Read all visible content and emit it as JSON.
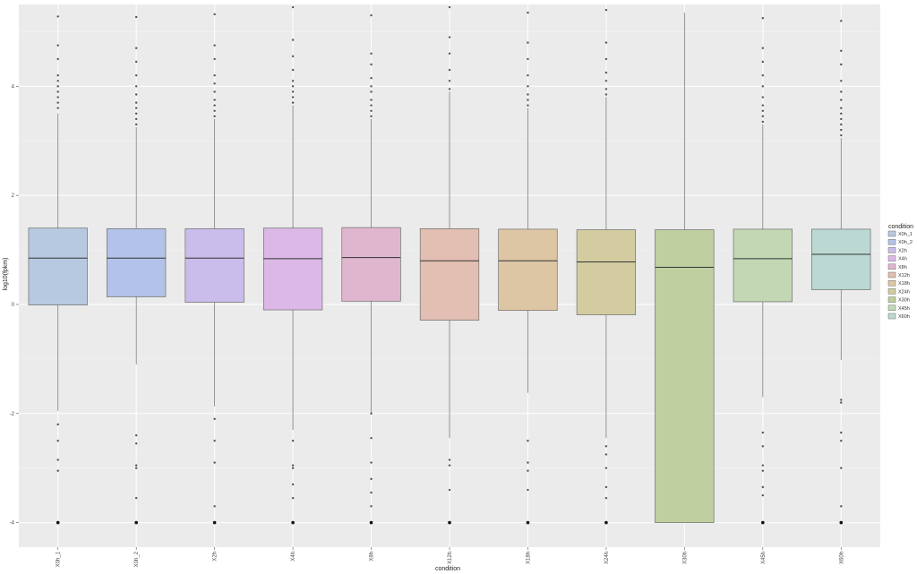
{
  "chart_data": {
    "type": "boxplot",
    "xlabel": "condition",
    "ylabel": "log10(fpkm)",
    "ylim": [
      -4.45,
      5.5
    ],
    "yticks": [
      -4,
      -2,
      0,
      2,
      4
    ],
    "grid": true,
    "legend_position": "right",
    "legend_title": "condition",
    "categories": [
      "X0h_1",
      "X0h_2",
      "X2h",
      "X4h",
      "X8h",
      "X12h",
      "X18h",
      "X24h",
      "X30h",
      "X45h",
      "X60h"
    ],
    "series": [
      {
        "name": "X0h_1",
        "color": "#b7c9e0",
        "q1": -0.01,
        "median": 0.85,
        "q3": 1.4,
        "whisker_low": -1.95,
        "whisker_high": 3.5,
        "outliers_high": [
          3.6,
          3.7,
          3.8,
          3.9,
          4.0,
          4.1,
          4.2,
          4.5,
          4.75,
          5.28
        ],
        "outliers_low": [
          -2.2,
          -2.5,
          -2.85,
          -3.05,
          -4.0
        ]
      },
      {
        "name": "X0h_2",
        "color": "#b2c2e8",
        "q1": 0.14,
        "median": 0.85,
        "q3": 1.39,
        "whisker_low": -1.1,
        "whisker_high": 3.25,
        "outliers_high": [
          3.3,
          3.4,
          3.5,
          3.6,
          3.7,
          3.85,
          4.0,
          4.2,
          4.45,
          4.7,
          5.27
        ],
        "outliers_low": [
          -2.4,
          -2.55,
          -2.95,
          -3.0,
          -3.55,
          -4.0
        ]
      },
      {
        "name": "X2h",
        "color": "#cabdeb",
        "q1": 0.04,
        "median": 0.85,
        "q3": 1.39,
        "whisker_low": -1.87,
        "whisker_high": 3.4,
        "outliers_high": [
          3.45,
          3.55,
          3.65,
          3.75,
          3.9,
          4.05,
          4.2,
          4.5,
          4.75,
          5.32
        ],
        "outliers_low": [
          -2.1,
          -2.5,
          -2.9,
          -3.7,
          -4.0
        ]
      },
      {
        "name": "X4h",
        "color": "#dbb8e6",
        "q1": -0.1,
        "median": 0.84,
        "q3": 1.4,
        "whisker_low": -2.3,
        "whisker_high": 3.65,
        "outliers_high": [
          3.7,
          3.8,
          3.9,
          4.0,
          4.1,
          4.3,
          4.55,
          4.85,
          5.45
        ],
        "outliers_low": [
          -2.5,
          -2.95,
          -3.0,
          -3.3,
          -3.55,
          -4.0
        ]
      },
      {
        "name": "X8h",
        "color": "#e0b6cf",
        "q1": 0.06,
        "median": 0.86,
        "q3": 1.41,
        "whisker_low": -2.0,
        "whisker_high": 3.4,
        "outliers_high": [
          3.45,
          3.55,
          3.65,
          3.75,
          3.9,
          4.0,
          4.15,
          4.4,
          4.6,
          5.3
        ],
        "outliers_low": [
          -2.0,
          -2.45,
          -2.9,
          -3.2,
          -3.45,
          -3.7,
          -4.0
        ]
      },
      {
        "name": "X12h",
        "color": "#e2bfb2",
        "q1": -0.29,
        "median": 0.8,
        "q3": 1.39,
        "whisker_low": -2.45,
        "whisker_high": 3.9,
        "outliers_high": [
          3.95,
          4.1,
          4.3,
          4.6,
          4.9,
          5.45
        ],
        "outliers_low": [
          -2.85,
          -2.95,
          -3.4,
          -4.0
        ]
      },
      {
        "name": "X18h",
        "color": "#ddc6a4",
        "q1": -0.11,
        "median": 0.8,
        "q3": 1.38,
        "whisker_low": -1.62,
        "whisker_high": 3.6,
        "outliers_high": [
          3.65,
          3.75,
          3.85,
          4.0,
          4.2,
          4.5,
          4.8,
          5.35
        ],
        "outliers_low": [
          -2.5,
          -2.9,
          -3.05,
          -3.4,
          -4.0
        ]
      },
      {
        "name": "X24h",
        "color": "#d2cca0",
        "q1": -0.19,
        "median": 0.78,
        "q3": 1.37,
        "whisker_low": -2.45,
        "whisker_high": 3.8,
        "outliers_high": [
          3.85,
          3.95,
          4.1,
          4.25,
          4.5,
          4.8,
          5.4
        ],
        "outliers_low": [
          -2.6,
          -2.75,
          -3.0,
          -3.35,
          -3.55,
          -4.0
        ]
      },
      {
        "name": "X30h",
        "color": "#bfcf9f",
        "q1": -4.0,
        "median": 0.68,
        "q3": 1.37,
        "whisker_low": -4.0,
        "whisker_high": 5.35,
        "outliers_high": [],
        "outliers_low": []
      },
      {
        "name": "X45h",
        "color": "#c2d8b4",
        "q1": 0.05,
        "median": 0.84,
        "q3": 1.38,
        "whisker_low": -1.7,
        "whisker_high": 3.3,
        "outliers_high": [
          3.35,
          3.45,
          3.55,
          3.65,
          3.8,
          4.0,
          4.2,
          4.45,
          4.7,
          5.25
        ],
        "outliers_low": [
          -2.35,
          -2.6,
          -2.95,
          -3.05,
          -3.35,
          -3.5,
          -4.0
        ]
      },
      {
        "name": "X60h",
        "color": "#bbd8d2",
        "q1": 0.27,
        "median": 0.92,
        "q3": 1.38,
        "whisker_low": -1.02,
        "whisker_high": 3.05,
        "outliers_high": [
          3.1,
          3.2,
          3.3,
          3.4,
          3.5,
          3.6,
          3.75,
          3.9,
          4.1,
          4.4,
          4.65,
          5.2
        ],
        "outliers_low": [
          -1.75,
          -1.8,
          -2.35,
          -2.5,
          -3.0,
          -3.7,
          -4.0
        ]
      }
    ]
  }
}
